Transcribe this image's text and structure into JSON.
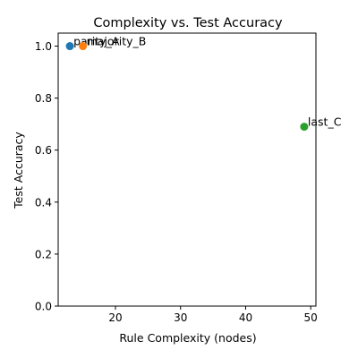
{
  "chart_data": {
    "type": "scatter",
    "title": "Complexity vs. Test Accuracy",
    "xlabel": "Rule Complexity (nodes)",
    "ylabel": "Test Accuracy",
    "xlim": [
      11.2,
      50.8
    ],
    "ylim": [
      0,
      1.05
    ],
    "xticks": [
      10,
      20,
      30,
      40,
      50
    ],
    "yticks": [
      0.0,
      0.2,
      0.4,
      0.6,
      0.8,
      1.0
    ],
    "xtick_labels": [
      "10",
      "20",
      "30",
      "40",
      "50"
    ],
    "ytick_labels": [
      "0.0",
      "0.2",
      "0.4",
      "0.6",
      "0.8",
      "1.0"
    ],
    "grid": false,
    "points": [
      {
        "label": "parity_A",
        "x": 13,
        "y": 1.0,
        "color": "#1f77b4"
      },
      {
        "label": "majority_B",
        "x": 15,
        "y": 1.0,
        "color": "#ff7f0e"
      },
      {
        "label": "last_C",
        "x": 49,
        "y": 0.69,
        "color": "#2ca02c"
      }
    ]
  }
}
